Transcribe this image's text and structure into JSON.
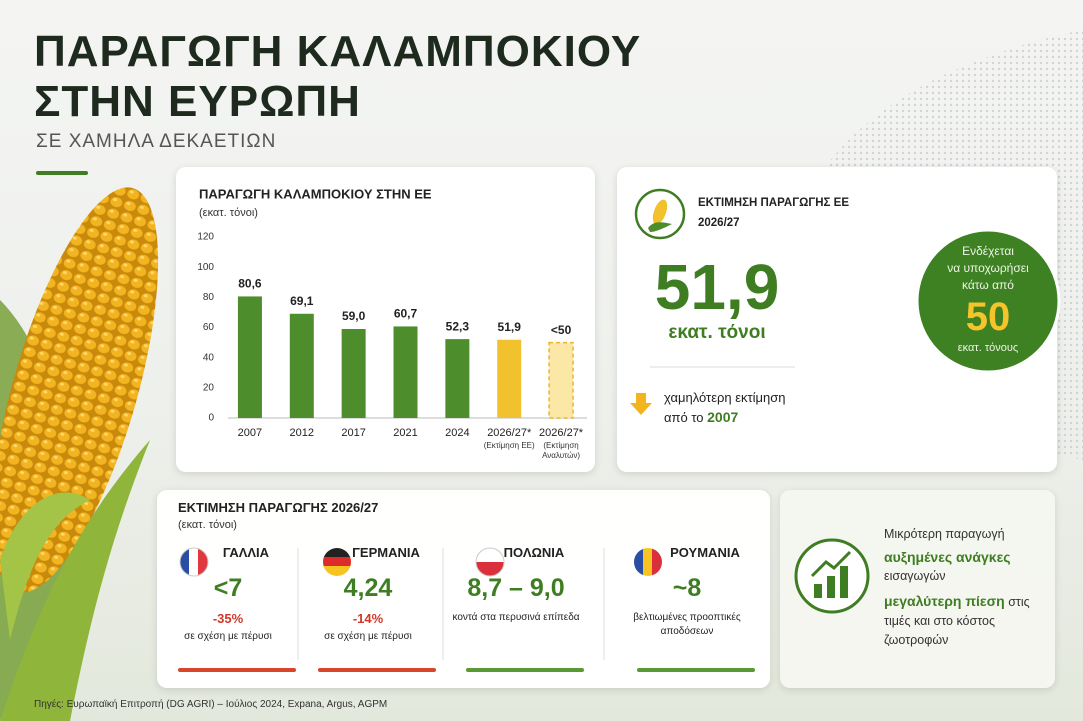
{
  "header": {
    "title_line1": "ΠΑΡΑΓΩΓΗ ΚΑΛΑΜΠΟΚΙΟΥ",
    "title_line2": "ΣΤΗΝ ΕΥΡΩΠΗ",
    "subtitle": "ΣΕ ΧΑΜΗΛΑ ΔΕΚΑΕΤΙΩΝ"
  },
  "chart_data": {
    "type": "bar",
    "title": "ΠΑΡΑΓΩΓΗ ΚΑΛΑΜΠΟΚΙΟΥ ΣΤΗΝ ΕΕ",
    "unit": "(εκατ. τόνοι)",
    "categories": [
      "2007",
      "2012",
      "2017",
      "2021",
      "2024",
      "2026/27*",
      "2026/27*"
    ],
    "category_notes": [
      null,
      null,
      null,
      null,
      null,
      "(Εκτίμηση ΕΕ)",
      "(Εκτίμηση Αναλυτών)"
    ],
    "values": [
      80.6,
      69.1,
      59.0,
      60.7,
      52.3,
      51.9,
      50
    ],
    "value_labels": [
      "80,6",
      "69,1",
      "59,0",
      "60,7",
      "52,3",
      "51,9",
      "<50"
    ],
    "colors": [
      "#4e8d2c",
      "#4e8d2c",
      "#4e8d2c",
      "#4e8d2c",
      "#4e8d2c",
      "#f2c12e",
      "#fbe7a6"
    ],
    "bar_styles": [
      "solid",
      "solid",
      "solid",
      "solid",
      "solid",
      "solid",
      "dashed"
    ],
    "ylim": [
      0,
      120
    ],
    "yticks": [
      0,
      20,
      40,
      60,
      80,
      100,
      120
    ],
    "grid": false
  },
  "estimate": {
    "title_line1": "ΕΚΤΙΜΗΣΗ ΠΑΡΑΓΩΓΗΣ ΕΕ",
    "title_line2": "2026/27",
    "value": "51,9",
    "unit": "εκατ. τόνοι",
    "note_line1": "χαμηλότερη εκτίμηση",
    "note_line2": "από το",
    "note_year": "2007"
  },
  "callout": {
    "line1": "Ενδέχεται",
    "line2": "να υποχωρήσει",
    "line3": "κάτω από",
    "value": "50",
    "unit": "εκατ. τόνους"
  },
  "countries_panel": {
    "title": "ΕΚΤΙΜΗΣΗ ΠΑΡΑΓΩΓΗΣ 2026/27",
    "unit": "(εκατ. τόνοι)",
    "countries": [
      {
        "name": "ΓΑΛΛΙΑ",
        "value": "<7",
        "change": "-35%",
        "note": "σε σχέση με πέρυσι",
        "color": "#d9452b"
      },
      {
        "name": "ΓΕΡΜΑΝΙΑ",
        "value": "4,24",
        "change": "-14%",
        "note": "σε σχέση με πέρυσι",
        "color": "#d9452b"
      },
      {
        "name": "ΠΟΛΩΝΙΑ",
        "value": "8,7 – 9,0",
        "note": "κοντά στα περυσινά επίπεδα",
        "color": "#5a9a34"
      },
      {
        "name": "ΡΟΥΜΑΝΙΑ",
        "value": "~8",
        "note": "βελτιωμένες προοπτικές αποδόσεων",
        "color": "#5a9a34"
      }
    ]
  },
  "impact": {
    "line1": "Μικρότερη παραγωγή",
    "line2_bold": "αυξημένες ανάγκες",
    "line3": "εισαγωγών",
    "line4_bold": "μεγαλύτερη πίεση",
    "line4_rest": "στις τιμές και στο κόστος ζωοτροφών"
  },
  "footer": "Πηγές: Ευρωπαϊκή Επιτροπή (DG AGRI) – Ιούλιος 2024, Expana, Argus, AGPM"
}
